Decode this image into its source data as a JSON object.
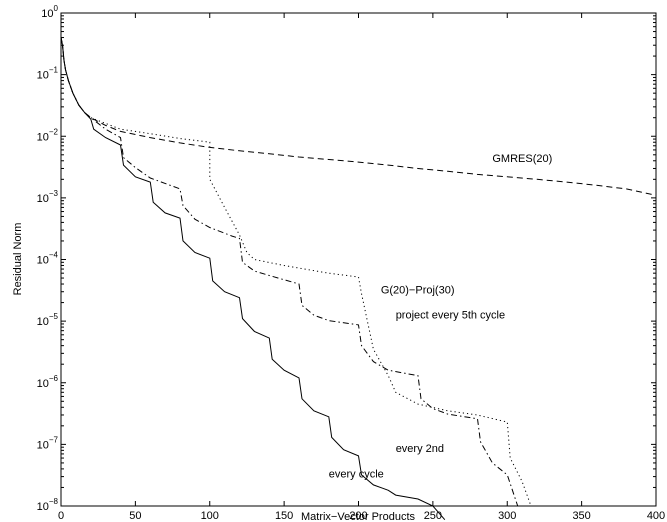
{
  "chart_data": {
    "type": "line",
    "title": "",
    "xlabel": "Matrix−Vector Products",
    "ylabel": "Residual Norm",
    "xlim": [
      0,
      400
    ],
    "ylim": [
      1e-08,
      1
    ],
    "yscale": "log",
    "grid": false,
    "x_ticks": [
      0,
      50,
      100,
      150,
      200,
      250,
      300,
      350,
      400
    ],
    "x_tick_labels": [
      "0",
      "50",
      "100",
      "150",
      "200",
      "250",
      "300",
      "350",
      "400"
    ],
    "y_ticks": [
      1e-08,
      1e-07,
      1e-06,
      1e-05,
      0.0001,
      0.001,
      0.01,
      0.1,
      1
    ],
    "y_tick_labels": [
      {
        "base": "10",
        "exp": "−8"
      },
      {
        "base": "10",
        "exp": "−7"
      },
      {
        "base": "10",
        "exp": "−6"
      },
      {
        "base": "10",
        "exp": "−5"
      },
      {
        "base": "10",
        "exp": "−4"
      },
      {
        "base": "10",
        "exp": "−3"
      },
      {
        "base": "10",
        "exp": "−2"
      },
      {
        "base": "10",
        "exp": "−1"
      },
      {
        "base": "10",
        "exp": "0"
      }
    ],
    "series": [
      {
        "style": "dashed",
        "color": "#000000",
        "points": [
          [
            0,
            0.4
          ],
          [
            1,
            0.3
          ],
          [
            2,
            0.17
          ],
          [
            3,
            0.12
          ],
          [
            5,
            0.08
          ],
          [
            8,
            0.05
          ],
          [
            12,
            0.032
          ],
          [
            16,
            0.024
          ],
          [
            20,
            0.02
          ],
          [
            30,
            0.015
          ],
          [
            40,
            0.012
          ],
          [
            60,
            0.0095
          ],
          [
            80,
            0.0078
          ],
          [
            100,
            0.0066
          ],
          [
            120,
            0.0058
          ],
          [
            140,
            0.0052
          ],
          [
            160,
            0.0046
          ],
          [
            180,
            0.0042
          ],
          [
            200,
            0.0038
          ],
          [
            220,
            0.0034
          ],
          [
            240,
            0.003
          ],
          [
            260,
            0.0027
          ],
          [
            280,
            0.0024
          ],
          [
            300,
            0.0022
          ],
          [
            320,
            0.002
          ],
          [
            340,
            0.0018
          ],
          [
            360,
            0.0016
          ],
          [
            380,
            0.0014
          ],
          [
            400,
            0.0011
          ]
        ]
      },
      {
        "style": "dotted",
        "color": "#000000",
        "points": [
          [
            0,
            0.4
          ],
          [
            1,
            0.3
          ],
          [
            2,
            0.17
          ],
          [
            3,
            0.12
          ],
          [
            5,
            0.08
          ],
          [
            8,
            0.05
          ],
          [
            12,
            0.032
          ],
          [
            16,
            0.024
          ],
          [
            20,
            0.02
          ],
          [
            40,
            0.013
          ],
          [
            60,
            0.011
          ],
          [
            80,
            0.0092
          ],
          [
            100,
            0.008
          ],
          [
            100,
            0.002
          ],
          [
            110,
            0.0007
          ],
          [
            120,
            0.00025
          ],
          [
            125,
            0.00013
          ],
          [
            130,
            0.0001
          ],
          [
            150,
            8e-05
          ],
          [
            180,
            6e-05
          ],
          [
            200,
            5.2e-05
          ],
          [
            202,
            2.8e-05
          ],
          [
            210,
            3.5e-06
          ],
          [
            220,
            1.3e-06
          ],
          [
            225,
            7e-07
          ],
          [
            240,
            4.5e-07
          ],
          [
            260,
            3.5e-07
          ],
          [
            280,
            3e-07
          ],
          [
            300,
            2.3e-07
          ],
          [
            302,
            6e-08
          ],
          [
            310,
            2.5e-08
          ],
          [
            316,
            1e-08
          ]
        ]
      },
      {
        "style": "dashdot",
        "color": "#000000",
        "points": [
          [
            0,
            0.4
          ],
          [
            1,
            0.3
          ],
          [
            2,
            0.17
          ],
          [
            3,
            0.12
          ],
          [
            5,
            0.08
          ],
          [
            8,
            0.05
          ],
          [
            12,
            0.032
          ],
          [
            16,
            0.024
          ],
          [
            20,
            0.02
          ],
          [
            30,
            0.013
          ],
          [
            40,
            0.0095
          ],
          [
            42,
            0.0045
          ],
          [
            50,
            0.0031
          ],
          [
            60,
            0.0021
          ],
          [
            80,
            0.0014
          ],
          [
            82,
            0.00075
          ],
          [
            90,
            0.00045
          ],
          [
            100,
            0.00033
          ],
          [
            115,
            0.00024
          ],
          [
            120,
            0.00022
          ],
          [
            122,
            9e-05
          ],
          [
            130,
            6.5e-05
          ],
          [
            140,
            5.5e-05
          ],
          [
            160,
            4e-05
          ],
          [
            162,
            1.8e-05
          ],
          [
            170,
            1.25e-05
          ],
          [
            180,
            1.02e-05
          ],
          [
            200,
            8.7e-06
          ],
          [
            202,
            4e-06
          ],
          [
            210,
            2.2e-06
          ],
          [
            220,
            1.6e-06
          ],
          [
            240,
            1.3e-06
          ],
          [
            242,
            5.5e-07
          ],
          [
            250,
            3.8e-07
          ],
          [
            260,
            3.1e-07
          ],
          [
            280,
            2.6e-07
          ],
          [
            282,
            1.1e-07
          ],
          [
            290,
            5e-08
          ],
          [
            300,
            3.2e-08
          ],
          [
            307,
            1e-08
          ]
        ]
      },
      {
        "style": "solid",
        "color": "#000000",
        "points": [
          [
            0,
            0.4
          ],
          [
            1,
            0.3
          ],
          [
            2,
            0.17
          ],
          [
            3,
            0.12
          ],
          [
            5,
            0.08
          ],
          [
            8,
            0.05
          ],
          [
            12,
            0.032
          ],
          [
            16,
            0.024
          ],
          [
            20,
            0.019
          ],
          [
            22,
            0.013
          ],
          [
            30,
            0.0095
          ],
          [
            40,
            0.0072
          ],
          [
            42,
            0.0034
          ],
          [
            50,
            0.0022
          ],
          [
            60,
            0.0018
          ],
          [
            62,
            0.00085
          ],
          [
            70,
            0.00057
          ],
          [
            80,
            0.00047
          ],
          [
            82,
            0.0002
          ],
          [
            90,
            0.00013
          ],
          [
            100,
            0.000105
          ],
          [
            102,
            4.5e-05
          ],
          [
            110,
            3e-05
          ],
          [
            120,
            2.4e-05
          ],
          [
            122,
            1.1e-05
          ],
          [
            130,
            6.8e-06
          ],
          [
            140,
            5.3e-06
          ],
          [
            142,
            2.4e-06
          ],
          [
            150,
            1.6e-06
          ],
          [
            160,
            1.2e-06
          ],
          [
            162,
            5.5e-07
          ],
          [
            170,
            3.5e-07
          ],
          [
            180,
            2.8e-07
          ],
          [
            182,
            1.3e-07
          ],
          [
            190,
            8.2e-08
          ],
          [
            200,
            6.5e-08
          ],
          [
            202,
            3.2e-08
          ],
          [
            210,
            2.2e-08
          ],
          [
            220,
            1.8e-08
          ],
          [
            225,
            1.5e-08
          ],
          [
            240,
            1.3e-08
          ],
          [
            250,
            1e-08
          ],
          [
            258,
            6e-09
          ]
        ]
      }
    ],
    "annotations": [
      {
        "text": "GMRES(20)",
        "x": 290,
        "y": 0.0038
      },
      {
        "text": "G(20)−Proj(30)",
        "x": 215,
        "y": 2.8e-05
      },
      {
        "text": "project every 5th cycle",
        "x": 225,
        "y": 1.1e-05
      },
      {
        "text": "every 2nd",
        "x": 225,
        "y": 7.5e-08
      },
      {
        "text": "every cycle",
        "x": 180,
        "y": 2.9e-08
      }
    ]
  }
}
